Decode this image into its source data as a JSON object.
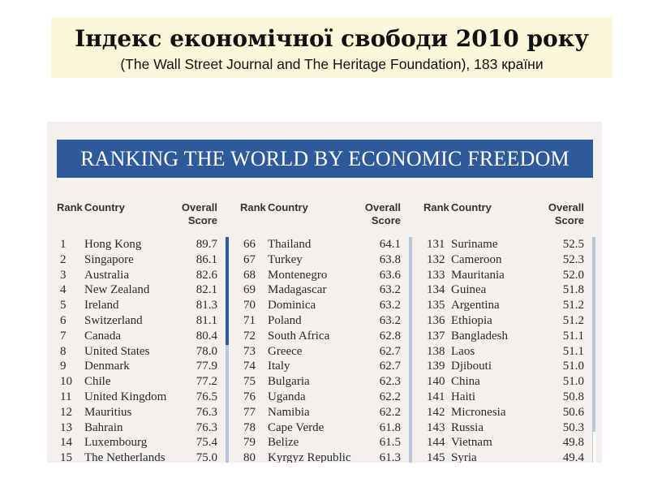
{
  "slide": {
    "title": "Індекс економічної свободи 2010 року",
    "subtitle": "(The Wall Street Journal and The Heritage Foundation), 183 країни"
  },
  "figure": {
    "banner": "RANKING THE WORLD BY ECONOMIC FREEDOM",
    "headers": {
      "rank": "Rank",
      "country": "Country",
      "score_line1": "Overall",
      "score_line2": "Score"
    },
    "columns": [
      {
        "rows": [
          {
            "rank": "1",
            "country": "Hong Kong",
            "score": "89.7"
          },
          {
            "rank": "2",
            "country": "Singapore",
            "score": "86.1"
          },
          {
            "rank": "3",
            "country": "Australia",
            "score": "82.6"
          },
          {
            "rank": "4",
            "country": "New Zealand",
            "score": "82.1"
          },
          {
            "rank": "5",
            "country": "Ireland",
            "score": "81.3"
          },
          {
            "rank": "6",
            "country": "Switzerland",
            "score": "81.1"
          },
          {
            "rank": "7",
            "country": "Canada",
            "score": "80.4"
          },
          {
            "rank": "8",
            "country": "United States",
            "score": "78.0"
          },
          {
            "rank": "9",
            "country": "Denmark",
            "score": "77.9"
          },
          {
            "rank": "10",
            "country": "Chile",
            "score": "77.2"
          },
          {
            "rank": "11",
            "country": "United Kingdom",
            "score": "76.5"
          },
          {
            "rank": "12",
            "country": "Mauritius",
            "score": "76.3"
          },
          {
            "rank": "13",
            "country": "Bahrain",
            "score": "76.3"
          },
          {
            "rank": "14",
            "country": "Luxembourg",
            "score": "75.4"
          },
          {
            "rank": "15",
            "country": "The Netherlands",
            "score": "75.0"
          }
        ]
      },
      {
        "rows": [
          {
            "rank": "66",
            "country": "Thailand",
            "score": "64.1"
          },
          {
            "rank": "67",
            "country": "Turkey",
            "score": "63.8"
          },
          {
            "rank": "68",
            "country": "Montenegro",
            "score": "63.6"
          },
          {
            "rank": "69",
            "country": "Madagascar",
            "score": "63.2"
          },
          {
            "rank": "70",
            "country": "Dominica",
            "score": "63.2"
          },
          {
            "rank": "71",
            "country": "Poland",
            "score": "63.2"
          },
          {
            "rank": "72",
            "country": "South Africa",
            "score": "62.8"
          },
          {
            "rank": "73",
            "country": "Greece",
            "score": "62.7"
          },
          {
            "rank": "74",
            "country": "Italy",
            "score": "62.7"
          },
          {
            "rank": "75",
            "country": "Bulgaria",
            "score": "62.3"
          },
          {
            "rank": "76",
            "country": "Uganda",
            "score": "62.2"
          },
          {
            "rank": "77",
            "country": "Namibia",
            "score": "62.2"
          },
          {
            "rank": "78",
            "country": "Cape Verde",
            "score": "61.8"
          },
          {
            "rank": "79",
            "country": "Belize",
            "score": "61.5"
          },
          {
            "rank": "80",
            "country": "Kyrgyz Republic",
            "score": "61.3"
          }
        ]
      },
      {
        "rows": [
          {
            "rank": "131",
            "country": "Suriname",
            "score": "52.5"
          },
          {
            "rank": "132",
            "country": "Cameroon",
            "score": "52.3"
          },
          {
            "rank": "133",
            "country": "Mauritania",
            "score": "52.0"
          },
          {
            "rank": "134",
            "country": "Guinea",
            "score": "51.8"
          },
          {
            "rank": "135",
            "country": "Argentina",
            "score": "51.2"
          },
          {
            "rank": "136",
            "country": "Ethiopia",
            "score": "51.2"
          },
          {
            "rank": "137",
            "country": "Bangladesh",
            "score": "51.1"
          },
          {
            "rank": "138",
            "country": "Laos",
            "score": "51.1"
          },
          {
            "rank": "139",
            "country": "Djibouti",
            "score": "51.0"
          },
          {
            "rank": "140",
            "country": "China",
            "score": "51.0"
          },
          {
            "rank": "141",
            "country": "Haiti",
            "score": "50.8"
          },
          {
            "rank": "142",
            "country": "Micronesia",
            "score": "50.6"
          },
          {
            "rank": "143",
            "country": "Russia",
            "score": "50.3"
          },
          {
            "rank": "144",
            "country": "Vietnam",
            "score": "49.8"
          },
          {
            "rank": "145",
            "country": "Syria",
            "score": "49.4"
          }
        ]
      }
    ]
  }
}
